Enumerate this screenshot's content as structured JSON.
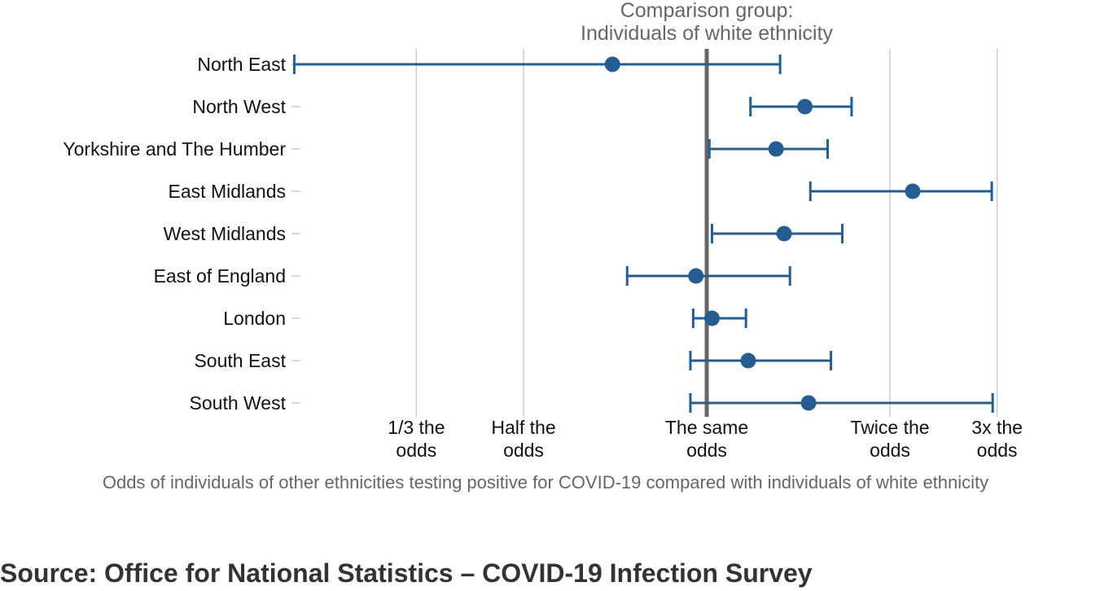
{
  "chart_data": {
    "type": "scatter",
    "subtype": "forest-plot-odds-ratio",
    "scale": "log",
    "xlim": [
      0.333,
      3.0
    ],
    "reference_value": 1,
    "reference_label": [
      "Comparison group:",
      "Individuals of white ethnicity"
    ],
    "xlabel": "Odds of individuals of other ethnicities testing positive for COVID-19 compared with individuals of white ethnicity",
    "ylabel": "",
    "grid": true,
    "xticks": [
      {
        "value": 0.3333,
        "label": [
          "1/3 the",
          "odds"
        ]
      },
      {
        "value": 0.5,
        "label": [
          "Half the",
          "odds"
        ]
      },
      {
        "value": 1,
        "label": [
          "The same",
          "odds"
        ]
      },
      {
        "value": 2,
        "label": [
          "Twice the",
          "odds"
        ]
      },
      {
        "value": 3,
        "label": [
          "3x the",
          "odds"
        ]
      }
    ],
    "categories": [
      "North East",
      "North West",
      "Yorkshire and The Humber",
      "East Midlands",
      "West Midlands",
      "East of England",
      "London",
      "South East",
      "South West"
    ],
    "series": [
      {
        "estimate": [
          0.7,
          1.45,
          1.3,
          2.18,
          1.34,
          0.96,
          1.02,
          1.17,
          1.47
        ],
        "lower": [
          0.21,
          1.18,
          1.01,
          1.48,
          1.02,
          0.74,
          0.95,
          0.94,
          0.94
        ],
        "upper": [
          1.32,
          1.73,
          1.58,
          2.94,
          1.67,
          1.37,
          1.16,
          1.6,
          2.95
        ]
      }
    ],
    "colors": {
      "points": "#255d92",
      "reference": "#666666",
      "grid": "#cccccc"
    }
  },
  "footer": {
    "source": "Source: Office for National Statistics – COVID-19 Infection Survey"
  }
}
